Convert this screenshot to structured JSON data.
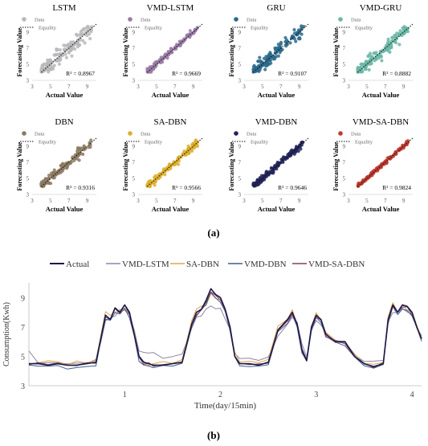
{
  "figure": {
    "panel_a_label": "(a)",
    "panel_b_label": "(b)"
  },
  "chart_data": [
    {
      "type": "scatter",
      "title": "LSTM",
      "xlabel": "Actual Value",
      "ylabel": "Forecasting Value",
      "xticks": [
        3,
        5,
        7,
        9
      ],
      "yticks": [
        3,
        5,
        7,
        9
      ],
      "xlim": [
        3,
        10
      ],
      "ylim": [
        3,
        10
      ],
      "legend": [
        "Data",
        "Equality"
      ],
      "legend_position": "top-left",
      "r2": "R² = 0.8967",
      "color": "#b8b8bc",
      "spread": 0.9
    },
    {
      "type": "scatter",
      "title": "VMD-LSTM",
      "xlabel": "Actual Value",
      "ylabel": "Forecasting Value",
      "xticks": [
        3,
        5,
        7,
        9
      ],
      "yticks": [
        3,
        5,
        7,
        9
      ],
      "xlim": [
        3,
        10
      ],
      "ylim": [
        3,
        10
      ],
      "legend": [
        "Data",
        "Equality"
      ],
      "legend_position": "top-left",
      "r2": "R² = 0.9669",
      "color": "#9a7ba6",
      "spread": 0.3
    },
    {
      "type": "scatter",
      "title": "GRU",
      "xlabel": "Actual Value",
      "ylabel": "Forecasting Value",
      "xticks": [
        3,
        5,
        7,
        9
      ],
      "yticks": [
        3,
        5,
        7,
        9
      ],
      "xlim": [
        3,
        10
      ],
      "ylim": [
        3,
        10
      ],
      "legend": [
        "Data",
        "Equality"
      ],
      "legend_position": "top-left",
      "r2": "R² = 0.9107",
      "color": "#2b6a8c",
      "spread": 0.65
    },
    {
      "type": "scatter",
      "title": "VMD-GRU",
      "xlabel": "Actual Value",
      "ylabel": "Forecasting Value",
      "xticks": [
        3,
        5,
        7,
        9
      ],
      "yticks": [
        3,
        5,
        7,
        9
      ],
      "xlim": [
        3,
        10
      ],
      "ylim": [
        3,
        10
      ],
      "legend": [
        "Data",
        "Equality"
      ],
      "legend_position": "top-left",
      "r2": "R² = 0.8882",
      "color": "#6bb7a6",
      "spread": 0.75
    },
    {
      "type": "scatter",
      "title": "DBN",
      "xlabel": "Actual Value",
      "ylabel": "Forecasting Value",
      "xticks": [
        3,
        5,
        7,
        9
      ],
      "yticks": [
        3,
        5,
        7,
        9
      ],
      "xlim": [
        3,
        10
      ],
      "ylim": [
        3,
        10
      ],
      "legend": [
        "Data",
        "Equality"
      ],
      "legend_position": "top-left",
      "r2": "R² = 0.9316",
      "color": "#8c7a62",
      "spread": 0.55
    },
    {
      "type": "scatter",
      "title": "SA-DBN",
      "xlabel": "Actual Value",
      "ylabel": "Forecasting Value",
      "xticks": [
        3,
        5,
        7,
        9
      ],
      "yticks": [
        3,
        5,
        7,
        9
      ],
      "xlim": [
        3,
        10
      ],
      "ylim": [
        3,
        10
      ],
      "legend": [
        "Data",
        "Equality"
      ],
      "legend_position": "top-left",
      "r2": "R² = 0.9566",
      "color": "#dcae2c",
      "spread": 0.4
    },
    {
      "type": "scatter",
      "title": "VMD-DBN",
      "xlabel": "Actual Value",
      "ylabel": "Forecasting Value",
      "xticks": [
        3,
        5,
        7,
        9
      ],
      "yticks": [
        3,
        5,
        7,
        9
      ],
      "xlim": [
        3,
        10
      ],
      "ylim": [
        3,
        10
      ],
      "legend": [
        "Data",
        "Equality"
      ],
      "legend_position": "top-left",
      "r2": "R² = 0.9646",
      "color": "#23245a",
      "spread": 0.33
    },
    {
      "type": "scatter",
      "title": "VMD-SA-DBN",
      "xlabel": "Actual Value",
      "ylabel": "Forecasting Value",
      "xticks": [
        3,
        5,
        7,
        9
      ],
      "yticks": [
        3,
        5,
        7,
        9
      ],
      "xlim": [
        3,
        10
      ],
      "ylim": [
        3,
        10
      ],
      "legend": [
        "Data",
        "Equality"
      ],
      "legend_position": "top-left",
      "r2": "R² = 0.9824",
      "color": "#c0392f",
      "spread": 0.22
    },
    {
      "type": "line",
      "xlabel": "Time(day/15min)",
      "ylabel": "Consumption(Kwh)",
      "xticks": [
        1,
        2,
        3,
        4
      ],
      "yticks": [
        3,
        5,
        7,
        9
      ],
      "xlim": [
        0,
        4.1
      ],
      "ylim": [
        3,
        10
      ],
      "legend_position": "top",
      "x": [
        0,
        0.1,
        0.2,
        0.3,
        0.4,
        0.5,
        0.6,
        0.7,
        0.75,
        0.8,
        0.85,
        0.9,
        0.95,
        1.0,
        1.05,
        1.1,
        1.15,
        1.2,
        1.25,
        1.3,
        1.4,
        1.5,
        1.6,
        1.7,
        1.75,
        1.8,
        1.85,
        1.9,
        1.95,
        2.0,
        2.05,
        2.1,
        2.15,
        2.2,
        2.3,
        2.4,
        2.5,
        2.6,
        2.7,
        2.75,
        2.8,
        2.85,
        2.9,
        2.95,
        3.0,
        3.05,
        3.1,
        3.2,
        3.3,
        3.4,
        3.5,
        3.6,
        3.7,
        3.75,
        3.8,
        3.85,
        3.9,
        3.95,
        4.0,
        4.05,
        4.1
      ],
      "series": [
        {
          "name": "Actual",
          "color": "#1a1a4a",
          "width": 1.6,
          "values": [
            4.5,
            4.5,
            4.4,
            4.5,
            4.4,
            4.4,
            4.5,
            4.6,
            6.2,
            7.8,
            7.5,
            8.3,
            8.0,
            8.5,
            8.0,
            6.5,
            5.0,
            4.6,
            4.5,
            4.4,
            4.4,
            4.5,
            4.6,
            7.2,
            8.0,
            8.2,
            8.8,
            9.6,
            9.2,
            9.0,
            8.2,
            7.0,
            5.0,
            4.5,
            4.5,
            4.4,
            4.6,
            6.8,
            7.5,
            8.0,
            7.2,
            5.5,
            4.7,
            7.0,
            7.8,
            7.5,
            6.5,
            6.0,
            6.0,
            5.0,
            4.5,
            4.3,
            4.5,
            7.5,
            8.5,
            8.0,
            8.5,
            8.4,
            8.0,
            7.0,
            6.2
          ]
        },
        {
          "name": "VMD-LSTM",
          "color": "#8f86a6",
          "width": 1.0,
          "values": [
            5.3,
            4.6,
            4.5,
            4.6,
            4.5,
            4.5,
            4.6,
            4.7,
            6.0,
            7.4,
            7.6,
            7.8,
            8.1,
            8.2,
            7.8,
            6.8,
            5.4,
            5.2,
            5.3,
            5.2,
            4.9,
            5.0,
            5.1,
            7.0,
            7.6,
            7.8,
            8.2,
            8.4,
            8.3,
            8.2,
            7.6,
            6.8,
            5.2,
            4.9,
            4.8,
            4.8,
            4.9,
            6.4,
            7.2,
            7.6,
            7.4,
            5.8,
            5.0,
            6.8,
            7.4,
            7.2,
            6.5,
            6.0,
            5.9,
            5.1,
            4.7,
            4.6,
            4.8,
            7.3,
            8.0,
            8.0,
            8.2,
            8.1,
            7.8,
            7.0,
            6.4
          ]
        },
        {
          "name": "SA-DBN",
          "color": "#e2a54c",
          "width": 1.0,
          "values": [
            4.4,
            4.6,
            4.7,
            4.6,
            4.5,
            4.6,
            4.6,
            4.7,
            6.4,
            8.1,
            7.7,
            8.1,
            8.0,
            8.3,
            7.9,
            6.6,
            5.0,
            4.5,
            4.4,
            4.5,
            4.6,
            4.6,
            4.7,
            7.5,
            8.2,
            8.4,
            8.5,
            9.2,
            9.0,
            8.8,
            8.0,
            6.9,
            5.2,
            4.7,
            4.6,
            4.6,
            4.8,
            7.0,
            7.6,
            8.1,
            7.1,
            5.4,
            4.8,
            7.1,
            7.9,
            7.5,
            6.6,
            6.1,
            6.0,
            5.1,
            4.6,
            4.4,
            4.6,
            7.7,
            8.6,
            8.1,
            8.4,
            8.2,
            8.0,
            7.1,
            6.3
          ]
        },
        {
          "name": "VMD-DBN",
          "color": "#3e5f8c",
          "width": 1.0,
          "values": [
            4.4,
            4.3,
            4.4,
            4.3,
            4.2,
            4.2,
            4.3,
            4.4,
            6.0,
            7.6,
            7.4,
            8.0,
            7.9,
            8.2,
            7.7,
            6.3,
            4.7,
            4.4,
            4.3,
            4.3,
            4.3,
            4.4,
            4.5,
            7.0,
            7.8,
            8.1,
            8.6,
            9.3,
            9.0,
            8.7,
            8.0,
            6.8,
            4.9,
            4.4,
            4.3,
            4.3,
            4.5,
            6.6,
            7.3,
            7.8,
            7.0,
            5.3,
            4.6,
            6.8,
            7.6,
            7.3,
            6.4,
            5.9,
            5.8,
            4.9,
            4.4,
            4.2,
            4.4,
            7.3,
            8.3,
            7.9,
            8.2,
            8.1,
            7.8,
            6.9,
            6.1
          ]
        },
        {
          "name": "VMD-SA-DBN",
          "color": "#8a3c5a",
          "width": 1.0,
          "values": [
            4.5,
            4.5,
            4.5,
            4.5,
            4.4,
            4.4,
            4.5,
            4.6,
            6.1,
            7.7,
            7.5,
            8.2,
            8.0,
            8.4,
            7.9,
            6.4,
            4.9,
            4.5,
            4.5,
            4.4,
            4.4,
            4.5,
            4.6,
            7.1,
            7.9,
            8.1,
            8.7,
            9.4,
            9.1,
            8.9,
            8.1,
            6.9,
            5.0,
            4.5,
            4.5,
            4.4,
            4.6,
            6.7,
            7.4,
            7.9,
            7.1,
            5.4,
            4.7,
            6.9,
            7.7,
            7.4,
            6.4,
            6.0,
            5.9,
            5.0,
            4.5,
            4.3,
            4.5,
            7.4,
            8.4,
            8.0,
            8.4,
            8.3,
            7.9,
            6.9,
            6.2
          ]
        }
      ]
    }
  ]
}
